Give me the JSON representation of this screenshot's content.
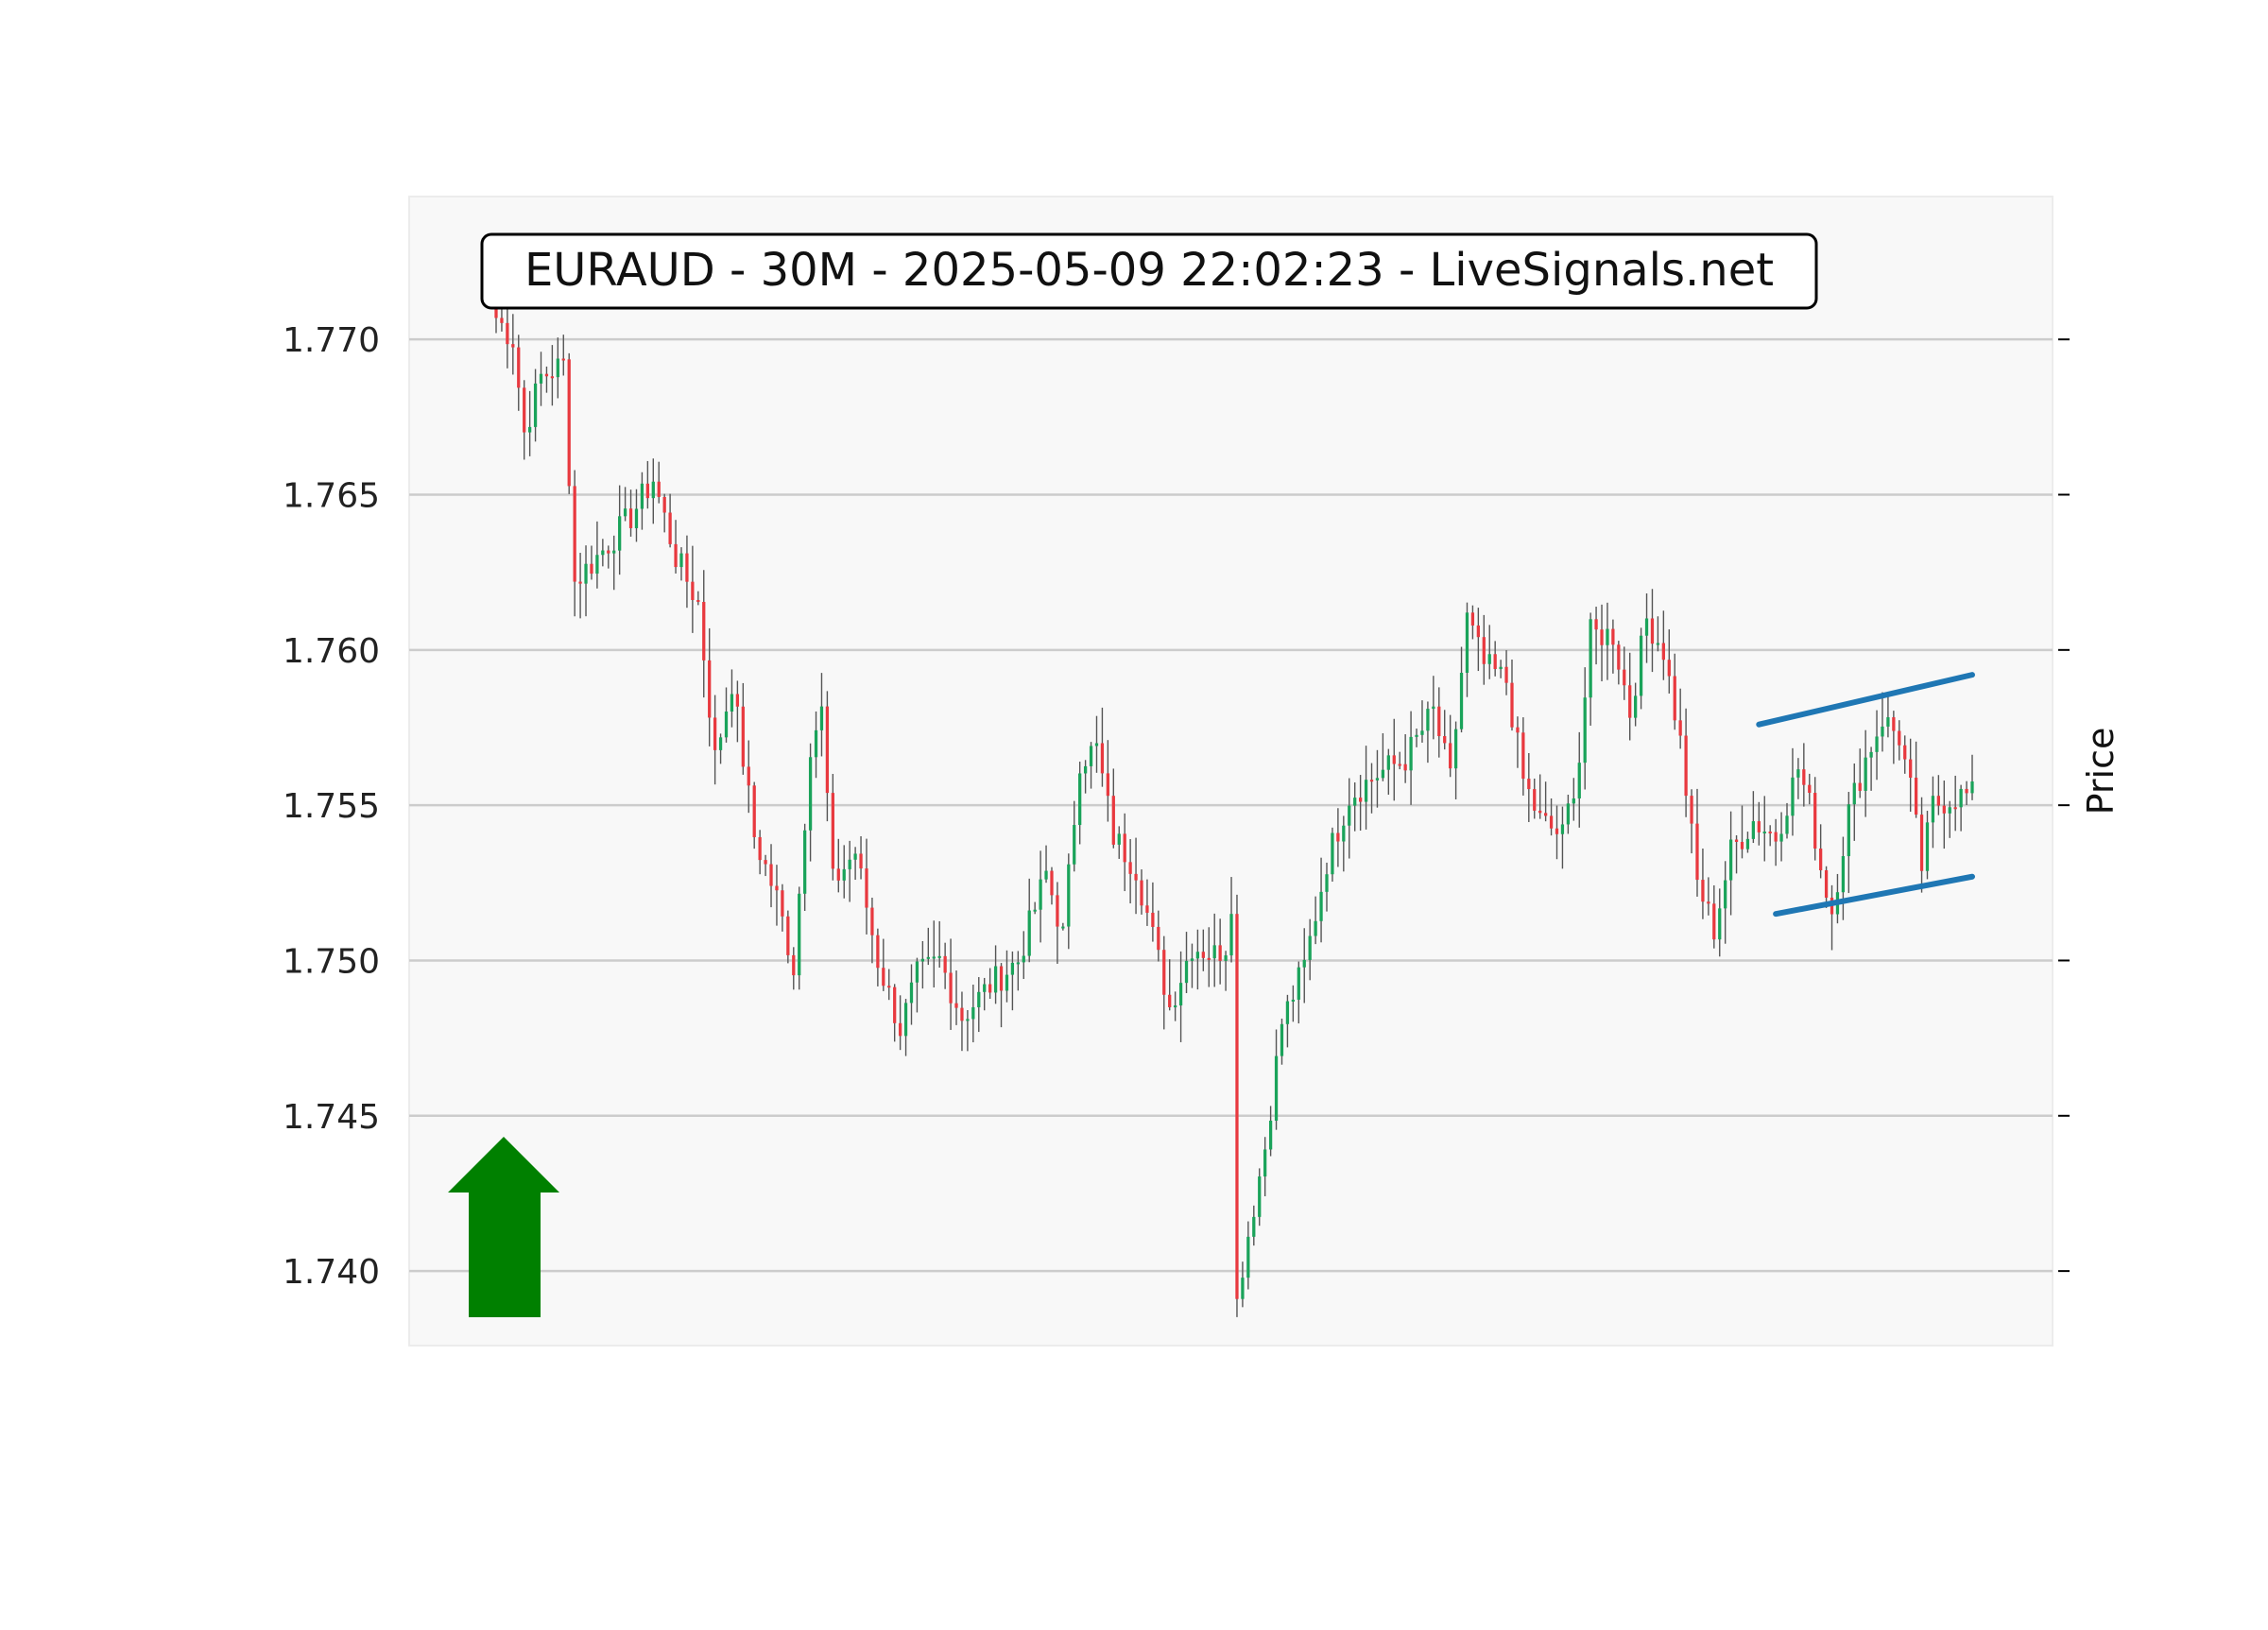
{
  "chart_data": {
    "type": "candlestick",
    "title": "EURAUD - 30M - 2025-05-09 22:02:23 - LiveSignals.net",
    "ylabel": "Price",
    "xlabel": "",
    "ylim": [
      1.7376,
      1.7746
    ],
    "yticks": [
      1.74,
      1.745,
      1.75,
      1.755,
      1.76,
      1.765,
      1.77
    ],
    "ytick_labels": [
      "1.740",
      "1.745",
      "1.750",
      "1.755",
      "1.760",
      "1.765",
      "1.770"
    ],
    "grid": "horizontal",
    "colors": {
      "up": "#1aa35a",
      "down": "#e8393f",
      "wick": "#555555",
      "channel": "#1f77b4",
      "arrow": "#008000",
      "plot_bg": "#f8f8f8",
      "grid": "#cccccc"
    },
    "signal": {
      "direction": "up",
      "icon": "arrow-up-icon",
      "color": "#008000"
    },
    "waypoints": [
      [
        0,
        1.7707
      ],
      [
        3,
        1.77
      ],
      [
        5,
        1.767
      ],
      [
        8,
        1.7688
      ],
      [
        12,
        1.7692
      ],
      [
        14,
        1.7622
      ],
      [
        18,
        1.763
      ],
      [
        24,
        1.7643
      ],
      [
        28,
        1.7655
      ],
      [
        32,
        1.763
      ],
      [
        36,
        1.7615
      ],
      [
        39,
        1.7565
      ],
      [
        42,
        1.759
      ],
      [
        46,
        1.754
      ],
      [
        50,
        1.752
      ],
      [
        53,
        1.7498
      ],
      [
        56,
        1.757
      ],
      [
        58,
        1.758
      ],
      [
        60,
        1.7525
      ],
      [
        64,
        1.7535
      ],
      [
        68,
        1.75
      ],
      [
        72,
        1.7478
      ],
      [
        75,
        1.7495
      ],
      [
        79,
        1.75
      ],
      [
        83,
        1.7482
      ],
      [
        88,
        1.7492
      ],
      [
        93,
        1.75
      ],
      [
        98,
        1.7528
      ],
      [
        101,
        1.7508
      ],
      [
        104,
        1.7565
      ],
      [
        107,
        1.7568
      ],
      [
        110,
        1.754
      ],
      [
        114,
        1.753
      ],
      [
        118,
        1.75
      ],
      [
        120,
        1.7485
      ],
      [
        124,
        1.7505
      ],
      [
        128,
        1.7502
      ],
      [
        130,
        1.7505
      ],
      [
        132,
        1.7392
      ],
      [
        134,
        1.7412
      ],
      [
        137,
        1.744
      ],
      [
        140,
        1.748
      ],
      [
        144,
        1.7498
      ],
      [
        148,
        1.7532
      ],
      [
        152,
        1.7553
      ],
      [
        157,
        1.756
      ],
      [
        162,
        1.7565
      ],
      [
        167,
        1.758
      ],
      [
        170,
        1.7558
      ],
      [
        173,
        1.761
      ],
      [
        176,
        1.7595
      ],
      [
        180,
        1.759
      ],
      [
        183,
        1.7558
      ],
      [
        186,
        1.7545
      ],
      [
        190,
        1.754
      ],
      [
        193,
        1.7565
      ],
      [
        195,
        1.7605
      ],
      [
        199,
        1.7605
      ],
      [
        202,
        1.758
      ],
      [
        205,
        1.761
      ],
      [
        208,
        1.76
      ],
      [
        211,
        1.757
      ],
      [
        214,
        1.7525
      ],
      [
        217,
        1.751
      ],
      [
        220,
        1.7535
      ],
      [
        224,
        1.7545
      ],
      [
        228,
        1.754
      ],
      [
        232,
        1.7562
      ],
      [
        234,
        1.755
      ],
      [
        236,
        1.753
      ],
      [
        238,
        1.7516
      ],
      [
        241,
        1.7548
      ],
      [
        244,
        1.7565
      ],
      [
        247,
        1.7578
      ],
      [
        250,
        1.7572
      ],
      [
        252,
        1.7555
      ],
      [
        254,
        1.753
      ],
      [
        256,
        1.755
      ],
      [
        260,
        1.7553
      ],
      [
        263,
        1.7553
      ]
    ],
    "channel": {
      "upper": [
        [
          225,
          1.7576
        ],
        [
          263,
          1.7592
        ]
      ],
      "lower": [
        [
          228,
          1.7515
        ],
        [
          263,
          1.7527
        ]
      ]
    }
  }
}
